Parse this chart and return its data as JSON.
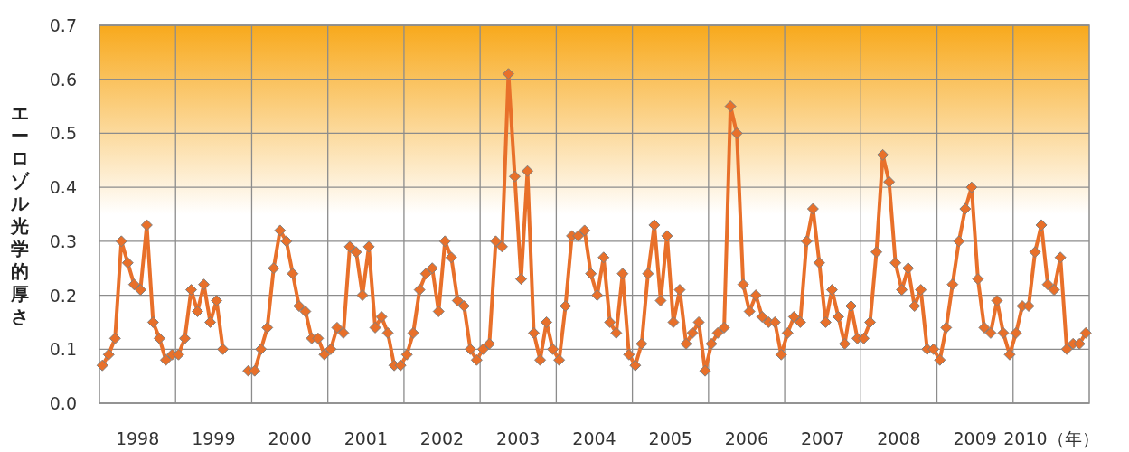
{
  "chart_data": {
    "type": "line",
    "ylabel": "エーロゾル光学的厚さ",
    "x": [
      "1998-01-15",
      "1998-02-15",
      "1998-03-15",
      "1998-04-15",
      "1998-05-15",
      "1998-06-15",
      "1998-07-15",
      "1998-08-15",
      "1998-09-15",
      "1998-10-15",
      "1998-11-15",
      "1998-12-15",
      "1999-01-15",
      "1999-02-15",
      "1999-03-15",
      "1999-04-15",
      "1999-05-15",
      "1999-06-15",
      "1999-07-15",
      "1999-08-15",
      "1999-12-15",
      "2000-01-15",
      "2000-02-15",
      "2000-03-15",
      "2000-04-15",
      "2000-05-15",
      "2000-06-15",
      "2000-07-15",
      "2000-08-15",
      "2000-09-15",
      "2000-10-15",
      "2000-11-15",
      "2000-12-15",
      "2001-01-15",
      "2001-02-15",
      "2001-03-15",
      "2001-04-15",
      "2001-05-15",
      "2001-06-15",
      "2001-07-15",
      "2001-08-15",
      "2001-09-15",
      "2001-10-15",
      "2001-11-15",
      "2001-12-15",
      "2002-01-15",
      "2002-02-15",
      "2002-03-15",
      "2002-04-15",
      "2002-05-15",
      "2002-06-15",
      "2002-07-15",
      "2002-08-15",
      "2002-09-15",
      "2002-10-15",
      "2002-11-15",
      "2002-12-15",
      "2003-01-15",
      "2003-02-15",
      "2003-03-15",
      "2003-04-15",
      "2003-05-15",
      "2003-06-15",
      "2003-07-15",
      "2003-08-15",
      "2003-09-15",
      "2003-10-15",
      "2003-11-15",
      "2003-12-15",
      "2004-01-15",
      "2004-02-15",
      "2004-03-15",
      "2004-04-15",
      "2004-05-15",
      "2004-06-15",
      "2004-07-15",
      "2004-08-15",
      "2004-09-15",
      "2004-10-15",
      "2004-11-15",
      "2004-12-15",
      "2005-01-15",
      "2005-02-15",
      "2005-03-15",
      "2005-04-15",
      "2005-05-15",
      "2005-06-15",
      "2005-07-15",
      "2005-08-15",
      "2005-09-15",
      "2005-10-15",
      "2005-11-15",
      "2005-12-15",
      "2006-01-15",
      "2006-02-15",
      "2006-03-15",
      "2006-04-15",
      "2006-05-15",
      "2006-06-15",
      "2006-07-15",
      "2006-08-15",
      "2006-09-15",
      "2006-10-15",
      "2006-11-15",
      "2006-12-15",
      "2007-01-15",
      "2007-02-15",
      "2007-03-15",
      "2007-04-15",
      "2007-05-15",
      "2007-06-15",
      "2007-07-15",
      "2007-08-15",
      "2007-09-15",
      "2007-10-15",
      "2007-11-15",
      "2007-12-15",
      "2008-01-15",
      "2008-02-15",
      "2008-03-15",
      "2008-04-15",
      "2008-05-15",
      "2008-06-15",
      "2008-07-15",
      "2008-08-15",
      "2008-09-15",
      "2008-10-15",
      "2008-11-15",
      "2008-12-15",
      "2009-01-15",
      "2009-02-15",
      "2009-03-15",
      "2009-04-15",
      "2009-05-15",
      "2009-06-15",
      "2009-07-15",
      "2009-08-15",
      "2009-09-15",
      "2009-10-15",
      "2009-11-15",
      "2009-12-15",
      "2010-01-15",
      "2010-02-15",
      "2010-03-15",
      "2010-04-15",
      "2010-05-15",
      "2010-06-15",
      "2010-07-15",
      "2010-08-15",
      "2010-09-15",
      "2010-10-15",
      "2010-11-15",
      "2010-12-15"
    ],
    "series": [
      {
        "color": "#e8702a",
        "values": [
          0.07,
          0.09,
          0.12,
          0.3,
          0.26,
          0.22,
          0.21,
          0.33,
          0.15,
          0.12,
          0.08,
          0.09,
          0.09,
          0.12,
          0.21,
          0.17,
          0.22,
          0.15,
          0.19,
          0.1,
          0.06,
          0.06,
          0.1,
          0.14,
          0.25,
          0.32,
          0.3,
          0.24,
          0.18,
          0.17,
          0.12,
          0.12,
          0.09,
          0.1,
          0.14,
          0.13,
          0.29,
          0.28,
          0.2,
          0.29,
          0.14,
          0.16,
          0.13,
          0.07,
          0.07,
          0.09,
          0.13,
          0.21,
          0.24,
          0.25,
          0.17,
          0.3,
          0.27,
          0.19,
          0.18,
          0.1,
          0.08,
          0.1,
          0.11,
          0.3,
          0.29,
          0.61,
          0.42,
          0.23,
          0.43,
          0.13,
          0.08,
          0.15,
          0.1,
          0.08,
          0.18,
          0.31,
          0.31,
          0.32,
          0.24,
          0.2,
          0.27,
          0.15,
          0.13,
          0.24,
          0.09,
          0.07,
          0.11,
          0.24,
          0.33,
          0.19,
          0.31,
          0.15,
          0.21,
          0.11,
          0.13,
          0.15,
          0.06,
          0.11,
          0.13,
          0.14,
          0.55,
          0.5,
          0.22,
          0.17,
          0.2,
          0.16,
          0.15,
          0.15,
          0.09,
          0.13,
          0.16,
          0.15,
          0.3,
          0.36,
          0.26,
          0.15,
          0.21,
          0.16,
          0.11,
          0.18,
          0.12,
          0.12,
          0.15,
          0.28,
          0.46,
          0.41,
          0.26,
          0.21,
          0.25,
          0.18,
          0.21,
          0.1,
          0.1,
          0.08,
          0.14,
          0.22,
          0.3,
          0.36,
          0.4,
          0.23,
          0.14,
          0.13,
          0.19,
          0.13,
          0.09,
          0.13,
          0.18,
          0.18,
          0.28,
          0.33,
          0.22,
          0.21,
          0.27,
          0.1,
          0.11,
          0.11,
          0.13
        ]
      }
    ],
    "xlim": [
      "1998-01-01",
      "2011-01-01"
    ],
    "xticks": [
      {
        "value": "1998-07-01",
        "label": "1998"
      },
      {
        "value": "1999-01-01",
        "label": null
      },
      {
        "value": "1999-07-01",
        "label": "1999"
      },
      {
        "value": "2000-01-01",
        "label": null
      },
      {
        "value": "2000-07-01",
        "label": "2000"
      },
      {
        "value": "2001-01-01",
        "label": null
      },
      {
        "value": "2001-07-01",
        "label": "2001"
      },
      {
        "value": "2002-01-01",
        "label": null
      },
      {
        "value": "2002-07-01",
        "label": "2002"
      },
      {
        "value": "2003-01-01",
        "label": null
      },
      {
        "value": "2003-07-01",
        "label": "2003"
      },
      {
        "value": "2004-01-01",
        "label": null
      },
      {
        "value": "2004-07-01",
        "label": "2004"
      },
      {
        "value": "2005-01-01",
        "label": null
      },
      {
        "value": "2005-07-01",
        "label": "2005"
      },
      {
        "value": "2006-01-01",
        "label": null
      },
      {
        "value": "2006-07-01",
        "label": "2006"
      },
      {
        "value": "2007-01-01",
        "label": null
      },
      {
        "value": "2007-07-01",
        "label": "2007"
      },
      {
        "value": "2008-01-01",
        "label": null
      },
      {
        "value": "2008-07-01",
        "label": "2008"
      },
      {
        "value": "2009-01-01",
        "label": null
      },
      {
        "value": "2009-07-01",
        "label": "2009"
      },
      {
        "value": "2010-01-01",
        "label": null
      },
      {
        "value": "2010-07-01",
        "label": "2010（年）"
      }
    ],
    "ylim": [
      0,
      0.7
    ],
    "yticks": [
      {
        "value": 0,
        "label": "0.0"
      },
      0.1,
      0.2,
      0.3,
      0.4,
      0.5,
      0.6,
      0.7
    ],
    "bands": [
      {
        "axis": "y",
        "from": 0.35,
        "to": 0.7,
        "color": "#f8a91c"
      }
    ],
    "grid": true,
    "marker": "diamond",
    "line_style": "solid"
  }
}
